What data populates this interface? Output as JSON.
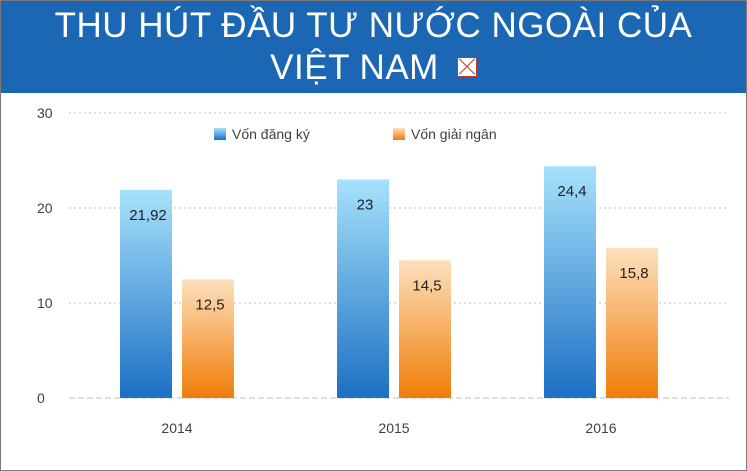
{
  "title": {
    "line1": "THU HÚT ĐẦU TƯ NƯỚC NGOÀI CỦA",
    "line2": "VIỆT NAM"
  },
  "chart_data": {
    "type": "bar",
    "categories": [
      "2014",
      "2015",
      "2016"
    ],
    "series": [
      {
        "name": "Vốn đăng ký",
        "values": [
          21.92,
          23,
          24.4
        ],
        "labels": [
          "21,92",
          "23",
          "24,4"
        ],
        "color_top": "#a6e2fb",
        "color_bottom": "#1c6fc4"
      },
      {
        "name": "Vốn giải ngân",
        "values": [
          12.5,
          14.5,
          15.8
        ],
        "labels": [
          "12,5",
          "14,5",
          "15,8"
        ],
        "color_top": "#fde0bd",
        "color_bottom": "#f07d08"
      }
    ],
    "ylim": [
      0,
      30
    ],
    "yticks": [
      0,
      10,
      20,
      30
    ],
    "ytick_labels": [
      "0",
      "10",
      "20",
      "30"
    ],
    "grid": true,
    "legend_position": "top-left"
  },
  "colors": {
    "banner": "#1b67b3",
    "gridline": "#bfbfbf"
  }
}
